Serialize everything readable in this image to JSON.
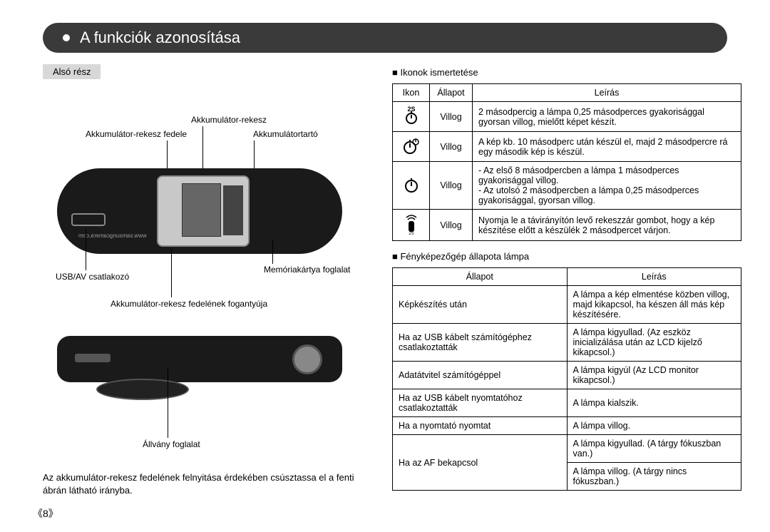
{
  "title": "A funkciók azonosítása",
  "left": {
    "section": "Alsó rész",
    "labels": {
      "battery_compartment": "Akkumulátor-rekesz",
      "battery_cover": "Akkumulátor-rekesz fedele",
      "battery_holder": "Akkumulátortartó",
      "usb_av": "USB/AV csatlakozó",
      "memory_slot": "Memóriakártya foglalat",
      "cover_handle": "Akkumulátor-rekesz fedelének fogantyúja",
      "tripod_socket": "Állvány foglalat",
      "url": "www.samsungcamera.com"
    },
    "note": "Az akkumulátor-rekesz fedelének felnyitása érdekében csúsztassa el a fenti ábrán látható irányba."
  },
  "right": {
    "sub1": "■ Ikonok ismertetése",
    "table1": {
      "headers": [
        "Ikon",
        "Állapot",
        "Leírás"
      ],
      "rows": [
        {
          "icon": "2S",
          "state": "Villog",
          "desc": "2 másodpercig a lámpa 0,25 másodperces gyakorisággal gyorsan villog, mielőtt képet készít."
        },
        {
          "icon": "double",
          "state": "Villog",
          "desc": "A kép kb. 10 másodperc után készül el, majd 2 másodpercre rá egy második kép is készül."
        },
        {
          "icon": "single",
          "state": "Villog",
          "desc": "- Az első 8 másodpercben a lámpa 1 másodperces gyakorisággal villog.\n- Az utolsó 2 másodpercben a lámpa 0,25 másodperces gyakorisággal, gyorsan villog."
        },
        {
          "icon": "remote",
          "state": "Villog",
          "desc": "Nyomja le a távirányítón levő rekeszzár gombot, hogy a kép készítése előtt a készülék 2 másodpercet várjon."
        }
      ]
    },
    "sub2": "■ Fényképezőgép állapota lámpa",
    "table2": {
      "headers": [
        "Állapot",
        "Leírás"
      ],
      "rows": [
        [
          "Képkészítés után",
          "A lámpa a kép elmentése közben villog, majd kikapcsol, ha készen áll más kép készítésére."
        ],
        [
          "Ha az USB kábelt számítógéphez csatlakoztatták",
          "A lámpa kigyullad. (Az eszköz inicializálása után az LCD kijelző kikapcsol.)"
        ],
        [
          "Adatátvitel számítógéppel",
          "A lámpa kigyúl (Az LCD monitor kikapcsol.)"
        ],
        [
          "Ha az USB kábelt nyomtatóhoz csatlakoztatták",
          "A lámpa kialszik."
        ],
        [
          "Ha a nyomtató nyomtat",
          "A lámpa villog."
        ],
        [
          "Ha az AF bekapcsol",
          "A lámpa kigyullad. (A tárgy fókuszban van.)\nA lámpa villog. (A tárgy nincs fókuszban.)"
        ]
      ]
    }
  },
  "page_number": "《8》"
}
